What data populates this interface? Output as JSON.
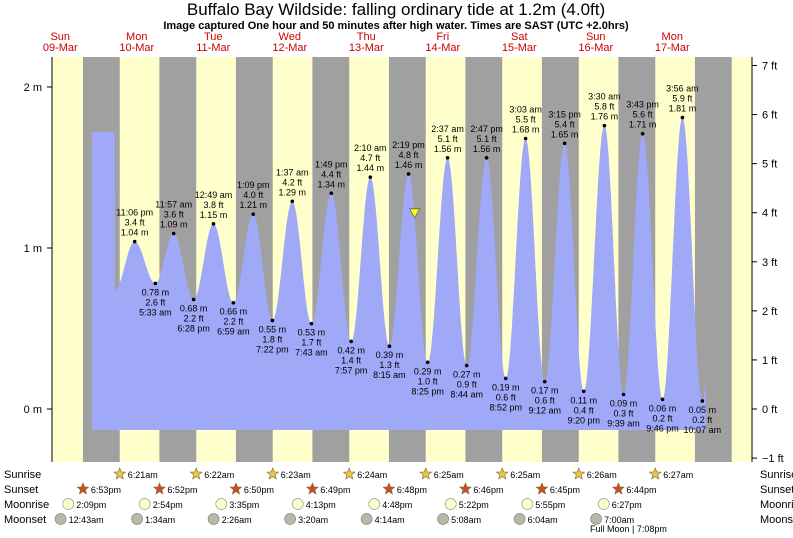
{
  "title": "Buffalo Bay Wildside: falling  ordinary tide at 1.2m (4.0ft)",
  "subtitle": "Image captured One hour and 50 minutes after high water. Times are SAST (UTC +2.0hrs)",
  "days": [
    {
      "name": "Sun",
      "date": "09-Mar"
    },
    {
      "name": "Mon",
      "date": "10-Mar"
    },
    {
      "name": "Tue",
      "date": "11-Mar"
    },
    {
      "name": "Wed",
      "date": "12-Mar"
    },
    {
      "name": "Thu",
      "date": "13-Mar"
    },
    {
      "name": "Fri",
      "date": "14-Mar"
    },
    {
      "name": "Sat",
      "date": "15-Mar"
    },
    {
      "name": "Sun",
      "date": "16-Mar"
    },
    {
      "name": "Mon",
      "date": "17-Mar"
    }
  ],
  "chart_data": {
    "type": "area",
    "title": "Buffalo Bay Wildside: falling  ordinary tide at 1.2m (4.0ft)",
    "y_ticks_m": [
      "2 m",
      "1 m",
      "0 m"
    ],
    "y_ticks_ft": [
      "7 ft",
      "6 ft",
      "5 ft",
      "4 ft",
      "3 ft",
      "2 ft",
      "1 ft",
      "0 ft",
      "−1 ft"
    ],
    "ylim_m": [
      -0.25,
      2.15
    ],
    "x_unit": "days since 09-Mar 00:00",
    "tides": [
      {
        "t": 1.46,
        "m": 1.04,
        "ft": "3.4 ft",
        "mlabel": "1.04 m",
        "time": "11:06 pm",
        "type": "high"
      },
      {
        "t": 1.73,
        "m": 0.78,
        "ft": "2.6 ft",
        "mlabel": "0.78 m",
        "time": "5:33 am",
        "type": "low"
      },
      {
        "t": 1.97,
        "m": 1.09,
        "ft": "3.6 ft",
        "mlabel": "1.09 m",
        "time": "11:57 am",
        "type": "high"
      },
      {
        "t": 2.23,
        "m": 0.68,
        "ft": "2.2 ft",
        "mlabel": "0.68 m",
        "time": "6:28 pm",
        "type": "low"
      },
      {
        "t": 2.49,
        "m": 1.15,
        "ft": "3.8 ft",
        "mlabel": "1.15 m",
        "time": "12:49 am",
        "type": "high"
      },
      {
        "t": 2.75,
        "m": 0.66,
        "ft": "2.2 ft",
        "mlabel": "0.66 m",
        "time": "6:59 am",
        "type": "low"
      },
      {
        "t": 3.01,
        "m": 1.21,
        "ft": "4.0 ft",
        "mlabel": "1.21 m",
        "time": "1:09 pm",
        "type": "high"
      },
      {
        "t": 3.26,
        "m": 0.55,
        "ft": "1.8 ft",
        "mlabel": "0.55 m",
        "time": "7:22 pm",
        "type": "low"
      },
      {
        "t": 3.52,
        "m": 1.29,
        "ft": "4.2 ft",
        "mlabel": "1.29 m",
        "time": "1:37 am",
        "type": "high"
      },
      {
        "t": 3.77,
        "m": 0.53,
        "ft": "1.7 ft",
        "mlabel": "0.53 m",
        "time": "7:43 am",
        "type": "low"
      },
      {
        "t": 4.03,
        "m": 1.34,
        "ft": "4.4 ft",
        "mlabel": "1.34 m",
        "time": "1:49 pm",
        "type": "high"
      },
      {
        "t": 4.29,
        "m": 0.42,
        "ft": "1.4 ft",
        "mlabel": "0.42 m",
        "time": "7:57 pm",
        "type": "low"
      },
      {
        "t": 4.54,
        "m": 1.44,
        "ft": "4.7 ft",
        "mlabel": "1.44 m",
        "time": "2:10 am",
        "type": "high"
      },
      {
        "t": 4.79,
        "m": 0.39,
        "ft": "1.3 ft",
        "mlabel": "0.39 m",
        "time": "8:15 am",
        "type": "low"
      },
      {
        "t": 5.04,
        "m": 1.46,
        "ft": "4.8 ft",
        "mlabel": "1.46 m",
        "time": "2:19 pm",
        "type": "high"
      },
      {
        "t": 5.29,
        "m": 0.29,
        "ft": "1.0 ft",
        "mlabel": "0.29 m",
        "time": "8:25 pm",
        "type": "low"
      },
      {
        "t": 5.55,
        "m": 1.56,
        "ft": "5.1 ft",
        "mlabel": "1.56 m",
        "time": "2:37 am",
        "type": "high"
      },
      {
        "t": 5.8,
        "m": 0.27,
        "ft": "0.9 ft",
        "mlabel": "0.27 m",
        "time": "8:44 am",
        "type": "low"
      },
      {
        "t": 6.06,
        "m": 1.56,
        "ft": "5.1 ft",
        "mlabel": "1.56 m",
        "time": "2:47 pm",
        "type": "high"
      },
      {
        "t": 6.31,
        "m": 0.19,
        "ft": "0.6 ft",
        "mlabel": "0.19 m",
        "time": "8:52 pm",
        "type": "low"
      },
      {
        "t": 6.57,
        "m": 1.68,
        "ft": "5.5 ft",
        "mlabel": "1.68 m",
        "time": "3:03 am",
        "type": "high"
      },
      {
        "t": 6.82,
        "m": 0.17,
        "ft": "0.6 ft",
        "mlabel": "0.17 m",
        "time": "9:12 am",
        "type": "low"
      },
      {
        "t": 7.08,
        "m": 1.65,
        "ft": "5.4 ft",
        "mlabel": "1.65 m",
        "time": "3:15 pm",
        "type": "high"
      },
      {
        "t": 7.33,
        "m": 0.11,
        "ft": "0.4 ft",
        "mlabel": "0.11 m",
        "time": "9:20 pm",
        "type": "low"
      },
      {
        "t": 7.6,
        "m": 1.76,
        "ft": "5.8 ft",
        "mlabel": "1.76 m",
        "time": "3:30 am",
        "type": "high"
      },
      {
        "t": 7.85,
        "m": 0.09,
        "ft": "0.3 ft",
        "mlabel": "0.09 m",
        "time": "9:39 am",
        "type": "low"
      },
      {
        "t": 8.1,
        "m": 1.71,
        "ft": "5.6 ft",
        "mlabel": "1.71 m",
        "time": "3:43 pm",
        "type": "high"
      },
      {
        "t": 8.36,
        "m": 0.06,
        "ft": "0.2 ft",
        "mlabel": "0.06 m",
        "time": "9:46 pm",
        "type": "low"
      },
      {
        "t": 8.62,
        "m": 1.81,
        "ft": "5.9 ft",
        "mlabel": "1.81 m",
        "time": "3:56 am",
        "type": "high"
      },
      {
        "t": 8.88,
        "m": 0.05,
        "ft": "0.2 ft",
        "mlabel": "0.05 m",
        "time": "10:07 am",
        "type": "low"
      }
    ],
    "current_marker": {
      "t": 5.12,
      "m": 1.2
    },
    "colors": {
      "day": "#ffffcc",
      "night": "#a0a0a0",
      "water": "#a0a8f8",
      "day_text": "#cc0000"
    }
  },
  "rows": {
    "labels": [
      "Sunrise",
      "Sunset",
      "Moonrise",
      "Moonset"
    ],
    "sunrise": [
      {
        "d": 1,
        "time": "6:21am"
      },
      {
        "d": 2,
        "time": "6:22am"
      },
      {
        "d": 3,
        "time": "6:23am"
      },
      {
        "d": 4,
        "time": "6:24am"
      },
      {
        "d": 5,
        "time": "6:25am"
      },
      {
        "d": 6,
        "time": "6:25am"
      },
      {
        "d": 7,
        "time": "6:26am"
      },
      {
        "d": 8,
        "time": "6:27am"
      }
    ],
    "sunset": [
      {
        "d": 1,
        "time": "6:53pm"
      },
      {
        "d": 2,
        "time": "6:52pm"
      },
      {
        "d": 3,
        "time": "6:50pm"
      },
      {
        "d": 4,
        "time": "6:49pm"
      },
      {
        "d": 5,
        "time": "6:48pm"
      },
      {
        "d": 6,
        "time": "6:46pm"
      },
      {
        "d": 7,
        "time": "6:45pm"
      },
      {
        "d": 8,
        "time": "6:44pm"
      }
    ],
    "moonrise": [
      {
        "d": 1,
        "time": "2:09pm"
      },
      {
        "d": 2,
        "time": "2:54pm"
      },
      {
        "d": 3,
        "time": "3:35pm"
      },
      {
        "d": 4,
        "time": "4:13pm"
      },
      {
        "d": 5,
        "time": "4:48pm"
      },
      {
        "d": 6,
        "time": "5:22pm"
      },
      {
        "d": 7,
        "time": "5:55pm"
      },
      {
        "d": 8,
        "time": "6:27pm"
      }
    ],
    "moonset": [
      {
        "d": 1,
        "time": "12:43am"
      },
      {
        "d": 2,
        "time": "1:34am"
      },
      {
        "d": 3,
        "time": "2:26am"
      },
      {
        "d": 4,
        "time": "3:20am"
      },
      {
        "d": 5,
        "time": "4:14am"
      },
      {
        "d": 6,
        "time": "5:08am"
      },
      {
        "d": 7,
        "time": "6:04am"
      },
      {
        "d": 8,
        "time": "7:00am"
      }
    ],
    "full_moon": "Full Moon | 7:08pm"
  }
}
